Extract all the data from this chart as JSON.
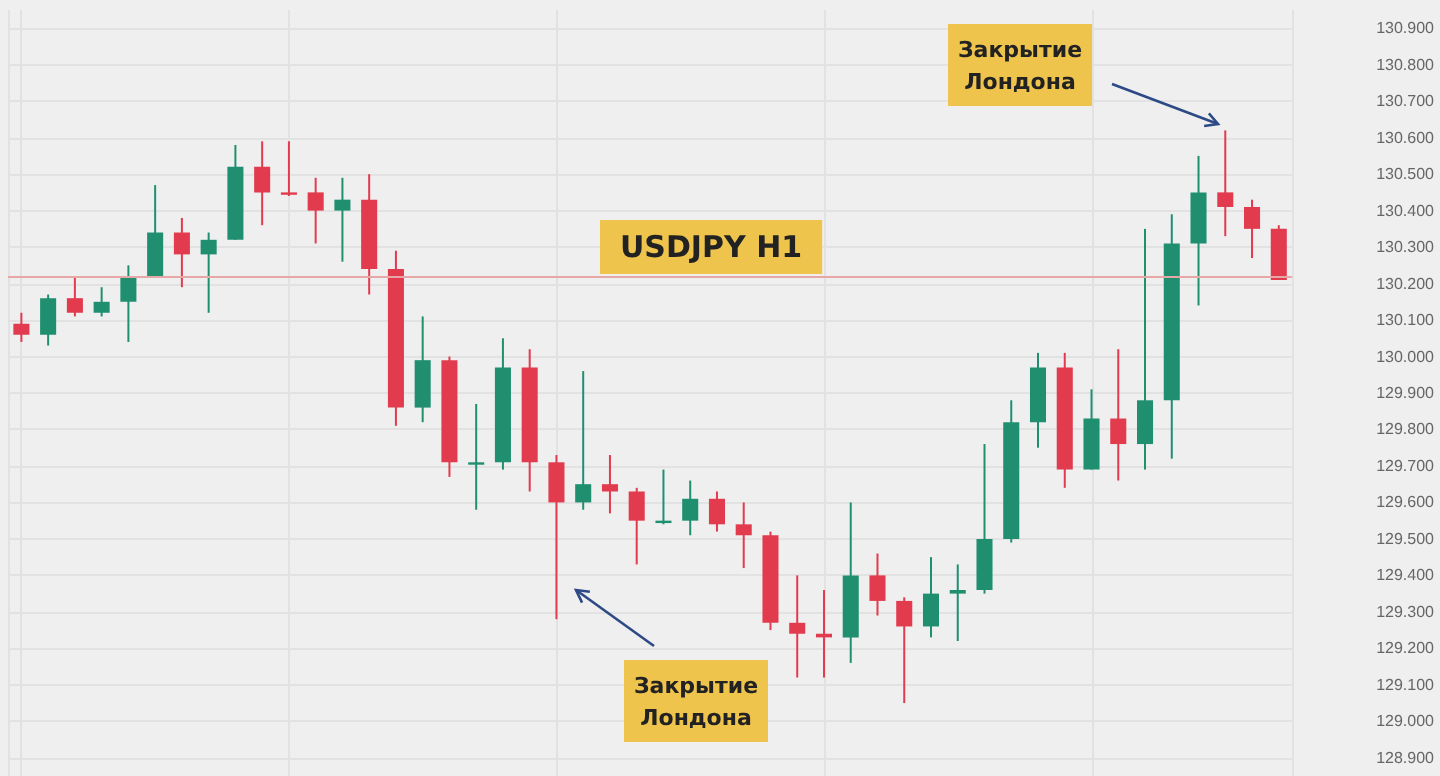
{
  "chart_data": {
    "type": "candlestick",
    "title": "USDJPY H1",
    "annotations": [
      "Закрытие Лондона",
      "Закрытие Лондона"
    ],
    "categories": [
      null,
      null,
      null,
      null,
      null,
      null,
      null,
      null,
      null,
      null,
      null,
      null,
      null,
      null,
      null,
      null,
      null,
      null,
      null,
      null,
      null,
      null,
      null,
      null,
      null,
      null,
      null,
      null,
      null,
      null,
      null,
      null,
      null,
      null,
      null,
      null,
      null,
      null,
      null,
      null,
      null,
      null,
      null,
      null,
      null,
      null,
      null,
      null
    ],
    "ohlc": [
      [
        130.09,
        130.12,
        130.04,
        130.06
      ],
      [
        130.06,
        130.17,
        130.03,
        130.16
      ],
      [
        130.16,
        130.22,
        130.11,
        130.12
      ],
      [
        130.12,
        130.19,
        130.11,
        130.15
      ],
      [
        130.15,
        130.25,
        130.04,
        130.22
      ],
      [
        130.22,
        130.47,
        130.22,
        130.34
      ],
      [
        130.34,
        130.38,
        130.19,
        130.28
      ],
      [
        130.28,
        130.34,
        130.12,
        130.32
      ],
      [
        130.32,
        130.58,
        130.32,
        130.52
      ],
      [
        130.52,
        130.59,
        130.36,
        130.45
      ],
      [
        130.45,
        130.59,
        130.44,
        130.45
      ],
      [
        130.45,
        130.49,
        130.31,
        130.4
      ],
      [
        130.4,
        130.49,
        130.26,
        130.43
      ],
      [
        130.43,
        130.5,
        130.17,
        130.24
      ],
      [
        130.24,
        130.29,
        129.81,
        129.86
      ],
      [
        129.86,
        130.11,
        129.82,
        129.99
      ],
      [
        129.99,
        130.0,
        129.67,
        129.71
      ],
      [
        129.71,
        129.87,
        129.58,
        129.71
      ],
      [
        129.71,
        130.05,
        129.69,
        129.97
      ],
      [
        129.97,
        130.02,
        129.63,
        129.71
      ],
      [
        129.71,
        129.73,
        129.28,
        129.6
      ],
      [
        129.6,
        129.96,
        129.58,
        129.65
      ],
      [
        129.65,
        129.73,
        129.57,
        129.63
      ],
      [
        129.63,
        129.64,
        129.43,
        129.55
      ],
      [
        129.55,
        129.69,
        129.54,
        129.55
      ],
      [
        129.55,
        129.66,
        129.51,
        129.61
      ],
      [
        129.61,
        129.63,
        129.52,
        129.54
      ],
      [
        129.54,
        129.6,
        129.42,
        129.51
      ],
      [
        129.51,
        129.52,
        129.25,
        129.27
      ],
      [
        129.27,
        129.4,
        129.12,
        129.24
      ],
      [
        129.24,
        129.36,
        129.12,
        129.23
      ],
      [
        129.23,
        129.6,
        129.16,
        129.4
      ],
      [
        129.4,
        129.46,
        129.29,
        129.33
      ],
      [
        129.33,
        129.34,
        129.05,
        129.26
      ],
      [
        129.26,
        129.45,
        129.23,
        129.35
      ],
      [
        129.35,
        129.43,
        129.22,
        129.36
      ],
      [
        129.36,
        129.76,
        129.35,
        129.5
      ],
      [
        129.5,
        129.88,
        129.49,
        129.82
      ],
      [
        129.82,
        130.01,
        129.75,
        129.97
      ],
      [
        129.97,
        130.01,
        129.64,
        129.69
      ],
      [
        129.69,
        129.91,
        129.69,
        129.83
      ],
      [
        129.83,
        130.02,
        129.66,
        129.76
      ],
      [
        129.76,
        130.35,
        129.69,
        129.88
      ],
      [
        129.88,
        130.39,
        129.72,
        130.31
      ],
      [
        130.31,
        130.55,
        130.14,
        130.45
      ],
      [
        130.45,
        130.62,
        130.33,
        130.41
      ],
      [
        130.41,
        130.43,
        130.27,
        130.35
      ],
      [
        130.35,
        130.36,
        130.21,
        130.21
      ]
    ],
    "colors": [
      "#e23b4e",
      "#1f8f70",
      "#e23b4e",
      "#1f8f70",
      "#1f8f70",
      "#1f8f70",
      "#e23b4e",
      "#1f8f70",
      "#1f8f70",
      "#e23b4e",
      "#e23b4e",
      "#e23b4e",
      "#1f8f70",
      "#e23b4e",
      "#e23b4e",
      "#1f8f70",
      "#e23b4e",
      "#1f8f70",
      "#1f8f70",
      "#e23b4e",
      "#e23b4e",
      "#1f8f70",
      "#e23b4e",
      "#e23b4e",
      "#1f8f70",
      "#1f8f70",
      "#e23b4e",
      "#e23b4e",
      "#e23b4e",
      "#e23b4e",
      "#e23b4e",
      "#1f8f70",
      "#e23b4e",
      "#e23b4e",
      "#1f8f70",
      "#1f8f70",
      "#1f8f70",
      "#1f8f70",
      "#1f8f70",
      "#e23b4e",
      "#1f8f70",
      "#e23b4e",
      "#1f8f70",
      "#1f8f70",
      "#1f8f70",
      "#e23b4e",
      "#e23b4e",
      "#e23b4e"
    ],
    "ylim": [
      128.85,
      130.95
    ],
    "yticks": [
      {
        "value": 128.9,
        "label": "128.900"
      },
      {
        "value": 129.0,
        "label": "129.000"
      },
      {
        "value": 129.1,
        "label": "129.100"
      },
      {
        "value": 129.2,
        "label": "129.200"
      },
      {
        "value": 129.3,
        "label": "129.300"
      },
      {
        "value": 129.4,
        "label": "129.400"
      },
      {
        "value": 129.5,
        "label": "129.500"
      },
      {
        "value": 129.6,
        "label": "129.600"
      },
      {
        "value": 129.7,
        "label": "129.700"
      },
      {
        "value": 129.8,
        "label": "129.800"
      },
      {
        "value": 129.9,
        "label": "129.900"
      },
      {
        "value": 130.0,
        "label": "130.000"
      },
      {
        "value": 130.1,
        "label": "130.100"
      },
      {
        "value": 130.2,
        "label": "130.200"
      },
      {
        "value": 130.3,
        "label": "130.300"
      },
      {
        "value": 130.4,
        "label": "130.400"
      },
      {
        "value": 130.5,
        "label": "130.500"
      },
      {
        "value": 130.6,
        "label": "130.600"
      },
      {
        "value": 130.7,
        "label": "130.700"
      },
      {
        "value": 130.8,
        "label": "130.800"
      },
      {
        "value": 130.9,
        "label": "130.900"
      }
    ],
    "ref_lines": [
      {
        "axis": "y",
        "value": 130.22,
        "color": "#e8a7a7"
      }
    ],
    "grid": true,
    "tick_labels": "y"
  }
}
